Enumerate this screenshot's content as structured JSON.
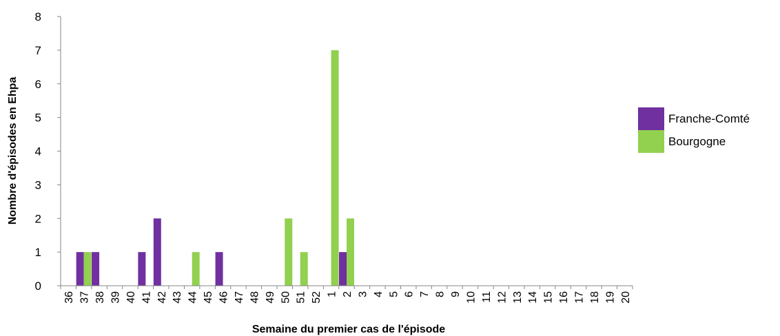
{
  "chart_data": {
    "type": "bar",
    "title": "",
    "xlabel": "Semaine du premier cas  de l'épisode",
    "ylabel": "Nombre d'épisodes en Ehpa",
    "ylim": [
      0,
      8
    ],
    "yticks": [
      "0",
      "1",
      "2",
      "3",
      "4",
      "5",
      "6",
      "7",
      "8"
    ],
    "grid": false,
    "legend_position": "right",
    "categories": [
      "36",
      "37",
      "38",
      "39",
      "40",
      "41",
      "42",
      "43",
      "44",
      "45",
      "46",
      "47",
      "48",
      "49",
      "50",
      "51",
      "52",
      "1",
      "2",
      "3",
      "4",
      "5",
      "6",
      "7",
      "8",
      "9",
      "10",
      "11",
      "12",
      "13",
      "14",
      "15",
      "16",
      "17",
      "18",
      "19",
      "20"
    ],
    "series": [
      {
        "name": "Franche-Comté",
        "color": "#7030a0",
        "values": [
          0,
          1,
          1,
          0,
          0,
          1,
          2,
          0,
          0,
          0,
          1,
          0,
          0,
          0,
          0,
          0,
          0,
          0,
          1,
          0,
          0,
          0,
          0,
          0,
          0,
          0,
          0,
          0,
          0,
          0,
          0,
          0,
          0,
          0,
          0,
          0,
          0
        ]
      },
      {
        "name": "Bourgogne",
        "color": "#92d050",
        "values": [
          0,
          1,
          0,
          0,
          0,
          0,
          0,
          0,
          1,
          0,
          0,
          0,
          0,
          0,
          2,
          1,
          0,
          7,
          2,
          0,
          0,
          0,
          0,
          0,
          0,
          0,
          0,
          0,
          0,
          0,
          0,
          0,
          0,
          0,
          0,
          0,
          0
        ]
      }
    ]
  }
}
